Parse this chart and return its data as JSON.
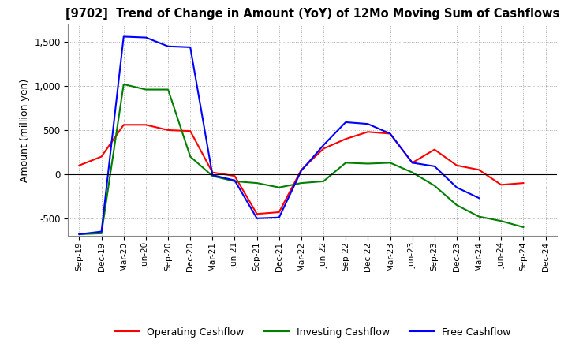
{
  "title": "[9702]  Trend of Change in Amount (YoY) of 12Mo Moving Sum of Cashflows",
  "ylabel": "Amount (million yen)",
  "ylim": [
    -700,
    1700
  ],
  "yticks": [
    -500,
    0,
    500,
    1000,
    1500
  ],
  "x_labels": [
    "Sep-19",
    "Dec-19",
    "Mar-20",
    "Jun-20",
    "Sep-20",
    "Dec-20",
    "Mar-21",
    "Jun-21",
    "Sep-21",
    "Dec-21",
    "Mar-22",
    "Jun-22",
    "Sep-22",
    "Dec-22",
    "Mar-23",
    "Jun-23",
    "Sep-23",
    "Dec-23",
    "Mar-24",
    "Jun-24",
    "Sep-24",
    "Dec-24"
  ],
  "operating": [
    100,
    200,
    560,
    560,
    500,
    490,
    20,
    -20,
    -450,
    -430,
    50,
    290,
    400,
    480,
    460,
    130,
    280,
    100,
    50,
    -120,
    -100,
    null
  ],
  "investing": [
    -680,
    -670,
    1020,
    960,
    960,
    200,
    -20,
    -80,
    -100,
    -150,
    -100,
    -80,
    130,
    120,
    130,
    20,
    -130,
    -350,
    -480,
    -530,
    -600,
    null
  ],
  "free": [
    -680,
    -650,
    1560,
    1550,
    1450,
    1440,
    -10,
    -70,
    -500,
    -490,
    40,
    330,
    590,
    570,
    460,
    130,
    90,
    -150,
    -270,
    null,
    null,
    null
  ],
  "colors": {
    "operating": "#ff0000",
    "investing": "#008000",
    "free": "#0000ff"
  },
  "legend_labels": [
    "Operating Cashflow",
    "Investing Cashflow",
    "Free Cashflow"
  ],
  "background_color": "#ffffff",
  "grid_color": "#aaaaaa"
}
